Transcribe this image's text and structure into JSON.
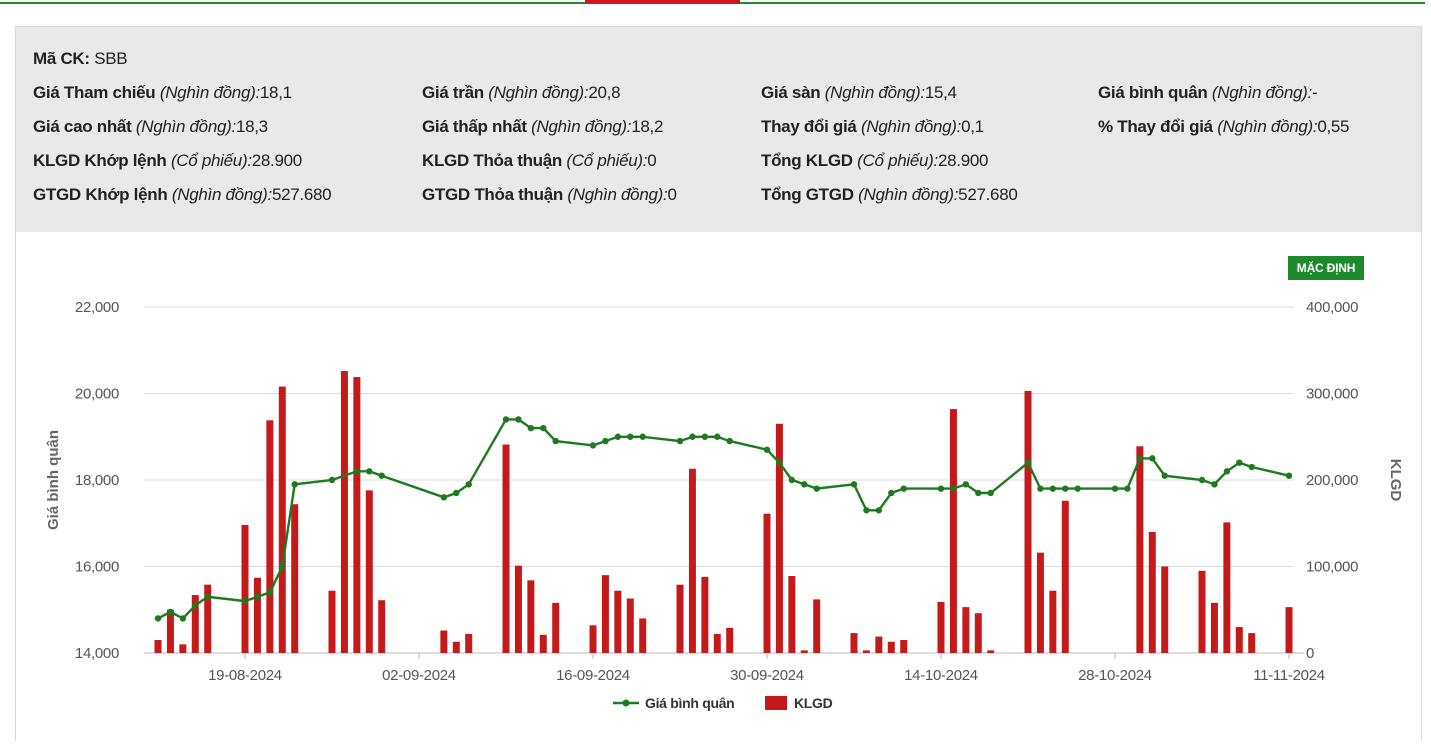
{
  "info": {
    "symbol": {
      "label": "Mã CK:",
      "value": "SBB"
    },
    "rows": [
      [
        {
          "label": "Giá Tham chiếu",
          "unit": "(Nghìn đồng):",
          "value": "18,1"
        },
        {
          "label": "Giá trần",
          "unit": "(Nghìn đồng):",
          "value": "20,8"
        },
        {
          "label": "Giá sàn",
          "unit": "(Nghìn đồng):",
          "value": "15,4"
        },
        {
          "label": "Giá bình quân",
          "unit": "(Nghìn đồng):",
          "value": "-"
        }
      ],
      [
        {
          "label": "Giá cao nhất",
          "unit": "(Nghìn đồng):",
          "value": "18,3"
        },
        {
          "label": "Giá thấp nhất",
          "unit": "(Nghìn đồng):",
          "value": "18,2"
        },
        {
          "label": "Thay đổi giá",
          "unit": "(Nghìn đồng):",
          "value": "0,1"
        },
        {
          "label": "% Thay đổi giá",
          "unit": "(Nghìn đồng):",
          "value": "0,55"
        }
      ],
      [
        {
          "label": "KLGD Khớp lệnh",
          "unit": "(Cổ phiếu):",
          "value": "28.900"
        },
        {
          "label": "KLGD Thỏa thuận",
          "unit": "(Cổ phiếu):",
          "value": "0"
        },
        {
          "label": "Tổng KLGD",
          "unit": "(Cổ phiếu):",
          "value": "28.900"
        }
      ],
      [
        {
          "label": "GTGD Khớp lệnh",
          "unit": "(Nghìn đồng):",
          "value": "527.680"
        },
        {
          "label": "GTGD Thỏa thuận",
          "unit": "(Nghìn đồng):",
          "value": "0"
        },
        {
          "label": "Tổng GTGD",
          "unit": "(Nghìn đồng):",
          "value": "527.680"
        }
      ]
    ]
  },
  "default_button": {
    "label": "MẶC ĐỊNH"
  },
  "colors": {
    "line": "#1f7a1f",
    "bar": "#c41a1a",
    "grid": "#dcdcdc",
    "accent": "#1f8a2b"
  },
  "chart_data": {
    "type": "bar",
    "x_range": [
      "2024-08-12",
      "2024-11-11"
    ],
    "x_ticks": [
      "19-08-2024",
      "02-09-2024",
      "16-09-2024",
      "30-09-2024",
      "14-10-2024",
      "28-10-2024",
      "11-11-2024"
    ],
    "ylabel": "Giá bình quân",
    "y2label": "KLGD",
    "ylim": [
      14000,
      22000
    ],
    "y2lim": [
      0,
      400000
    ],
    "y_ticks": [
      "14,000",
      "16,000",
      "18,000",
      "20,000",
      "22,000"
    ],
    "y2_ticks": [
      "0",
      "100,000",
      "200,000",
      "300,000",
      "400,000"
    ],
    "grid": true,
    "legend": "bottom-center",
    "series": [
      {
        "name": "Giá bình quân",
        "kind": "line",
        "points": [
          [
            "2024-08-12",
            14800
          ],
          [
            "2024-08-13",
            14950
          ],
          [
            "2024-08-14",
            14800
          ],
          [
            "2024-08-15",
            15100
          ],
          [
            "2024-08-16",
            15300
          ],
          [
            "2024-08-19",
            15200
          ],
          [
            "2024-08-20",
            15300
          ],
          [
            "2024-08-21",
            15400
          ],
          [
            "2024-08-22",
            16000
          ],
          [
            "2024-08-23",
            17900
          ],
          [
            "2024-08-26",
            18000
          ],
          [
            "2024-08-28",
            18200
          ],
          [
            "2024-08-29",
            18200
          ],
          [
            "2024-08-30",
            18100
          ],
          [
            "2024-09-04",
            17600
          ],
          [
            "2024-09-05",
            17700
          ],
          [
            "2024-09-06",
            17900
          ],
          [
            "2024-09-09",
            19400
          ],
          [
            "2024-09-10",
            19400
          ],
          [
            "2024-09-11",
            19200
          ],
          [
            "2024-09-12",
            19200
          ],
          [
            "2024-09-13",
            18900
          ],
          [
            "2024-09-16",
            18800
          ],
          [
            "2024-09-17",
            18900
          ],
          [
            "2024-09-18",
            19000
          ],
          [
            "2024-09-19",
            19000
          ],
          [
            "2024-09-20",
            19000
          ],
          [
            "2024-09-23",
            18900
          ],
          [
            "2024-09-24",
            19000
          ],
          [
            "2024-09-25",
            19000
          ],
          [
            "2024-09-26",
            19000
          ],
          [
            "2024-09-27",
            18900
          ],
          [
            "2024-09-30",
            18700
          ],
          [
            "2024-10-01",
            18400
          ],
          [
            "2024-10-02",
            18000
          ],
          [
            "2024-10-03",
            17900
          ],
          [
            "2024-10-04",
            17800
          ],
          [
            "2024-10-07",
            17900
          ],
          [
            "2024-10-08",
            17300
          ],
          [
            "2024-10-09",
            17300
          ],
          [
            "2024-10-10",
            17700
          ],
          [
            "2024-10-11",
            17800
          ],
          [
            "2024-10-14",
            17800
          ],
          [
            "2024-10-15",
            17800
          ],
          [
            "2024-10-16",
            17900
          ],
          [
            "2024-10-17",
            17700
          ],
          [
            "2024-10-18",
            17700
          ],
          [
            "2024-10-21",
            18400
          ],
          [
            "2024-10-22",
            17800
          ],
          [
            "2024-10-23",
            17800
          ],
          [
            "2024-10-24",
            17800
          ],
          [
            "2024-10-25",
            17800
          ],
          [
            "2024-10-28",
            17800
          ],
          [
            "2024-10-29",
            17800
          ],
          [
            "2024-10-30",
            18500
          ],
          [
            "2024-10-31",
            18500
          ],
          [
            "2024-11-01",
            18100
          ],
          [
            "2024-11-04",
            18000
          ],
          [
            "2024-11-05",
            17900
          ],
          [
            "2024-11-06",
            18200
          ],
          [
            "2024-11-07",
            18400
          ],
          [
            "2024-11-08",
            18300
          ],
          [
            "2024-11-11",
            18100
          ]
        ]
      },
      {
        "name": "KLGD",
        "kind": "bar",
        "points": [
          [
            "2024-08-12",
            15000
          ],
          [
            "2024-08-13",
            50000
          ],
          [
            "2024-08-14",
            10000
          ],
          [
            "2024-08-15",
            67000
          ],
          [
            "2024-08-16",
            79000
          ],
          [
            "2024-08-19",
            148000
          ],
          [
            "2024-08-20",
            87000
          ],
          [
            "2024-08-21",
            269000
          ],
          [
            "2024-08-22",
            308000
          ],
          [
            "2024-08-23",
            172000
          ],
          [
            "2024-08-26",
            72000
          ],
          [
            "2024-08-27",
            326000
          ],
          [
            "2024-08-28",
            319000
          ],
          [
            "2024-08-29",
            188000
          ],
          [
            "2024-08-30",
            61000
          ],
          [
            "2024-09-04",
            26000
          ],
          [
            "2024-09-05",
            13000
          ],
          [
            "2024-09-06",
            22000
          ],
          [
            "2024-09-09",
            241000
          ],
          [
            "2024-09-10",
            101000
          ],
          [
            "2024-09-11",
            84000
          ],
          [
            "2024-09-12",
            21000
          ],
          [
            "2024-09-13",
            58000
          ],
          [
            "2024-09-16",
            32000
          ],
          [
            "2024-09-17",
            90000
          ],
          [
            "2024-09-18",
            72000
          ],
          [
            "2024-09-19",
            63000
          ],
          [
            "2024-09-20",
            40000
          ],
          [
            "2024-09-23",
            79000
          ],
          [
            "2024-09-24",
            213000
          ],
          [
            "2024-09-25",
            88000
          ],
          [
            "2024-09-26",
            22000
          ],
          [
            "2024-09-27",
            29000
          ],
          [
            "2024-09-30",
            161000
          ],
          [
            "2024-10-01",
            265000
          ],
          [
            "2024-10-02",
            89000
          ],
          [
            "2024-10-03",
            3000
          ],
          [
            "2024-10-04",
            62000
          ],
          [
            "2024-10-07",
            23000
          ],
          [
            "2024-10-08",
            3000
          ],
          [
            "2024-10-09",
            19000
          ],
          [
            "2024-10-10",
            13000
          ],
          [
            "2024-10-11",
            15000
          ],
          [
            "2024-10-14",
            59000
          ],
          [
            "2024-10-15",
            282000
          ],
          [
            "2024-10-16",
            53000
          ],
          [
            "2024-10-17",
            46000
          ],
          [
            "2024-10-18",
            3000
          ],
          [
            "2024-10-21",
            303000
          ],
          [
            "2024-10-22",
            116000
          ],
          [
            "2024-10-23",
            72000
          ],
          [
            "2024-10-24",
            176000
          ],
          [
            "2024-10-30",
            239000
          ],
          [
            "2024-10-31",
            140000
          ],
          [
            "2024-11-01",
            100000
          ],
          [
            "2024-11-04",
            95000
          ],
          [
            "2024-11-05",
            58000
          ],
          [
            "2024-11-06",
            151000
          ],
          [
            "2024-11-07",
            30000
          ],
          [
            "2024-11-08",
            23000
          ],
          [
            "2024-11-11",
            53000
          ]
        ]
      }
    ]
  }
}
